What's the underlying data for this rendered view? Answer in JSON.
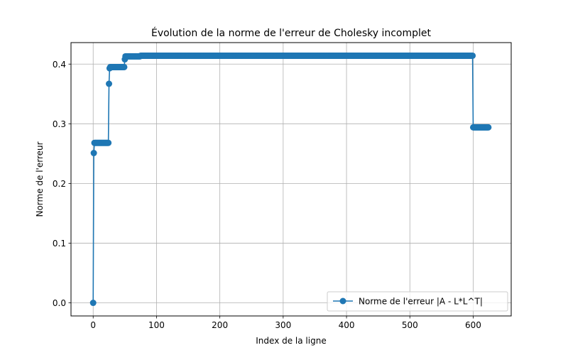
{
  "chart_data": {
    "type": "line",
    "title": "Évolution de la norme de l'erreur de Cholesky incomplet",
    "xlabel": "Index de la ligne",
    "ylabel": "Norme de l'erreur",
    "xlim": [
      -35,
      660
    ],
    "ylim": [
      -0.022,
      0.436
    ],
    "xticks": [
      0,
      100,
      200,
      300,
      400,
      500,
      600
    ],
    "yticks": [
      0.0,
      0.1,
      0.2,
      0.3,
      0.4
    ],
    "xtick_labels": [
      "0",
      "100",
      "200",
      "300",
      "400",
      "500",
      "600"
    ],
    "ytick_labels": [
      "0.0",
      "0.1",
      "0.2",
      "0.3",
      "0.4"
    ],
    "grid": true,
    "legend_position": "bottom-right",
    "series": [
      {
        "name": "Norme de l'erreur |A - L*L^T|",
        "color": "#1f77b4",
        "marker": "circle",
        "segments": [
          {
            "from": 0,
            "to": 0,
            "value": 0.0
          },
          {
            "from": 1,
            "to": 1,
            "value": 0.251
          },
          {
            "from": 2,
            "to": 24,
            "value": 0.268
          },
          {
            "from": 25,
            "to": 25,
            "value": 0.367
          },
          {
            "from": 26,
            "to": 26,
            "value": 0.393
          },
          {
            "from": 27,
            "to": 49,
            "value": 0.395
          },
          {
            "from": 50,
            "to": 50,
            "value": 0.408
          },
          {
            "from": 51,
            "to": 74,
            "value": 0.413
          },
          {
            "from": 75,
            "to": 599,
            "value": 0.414
          },
          {
            "from": 600,
            "to": 624,
            "value": 0.294
          }
        ]
      }
    ]
  }
}
